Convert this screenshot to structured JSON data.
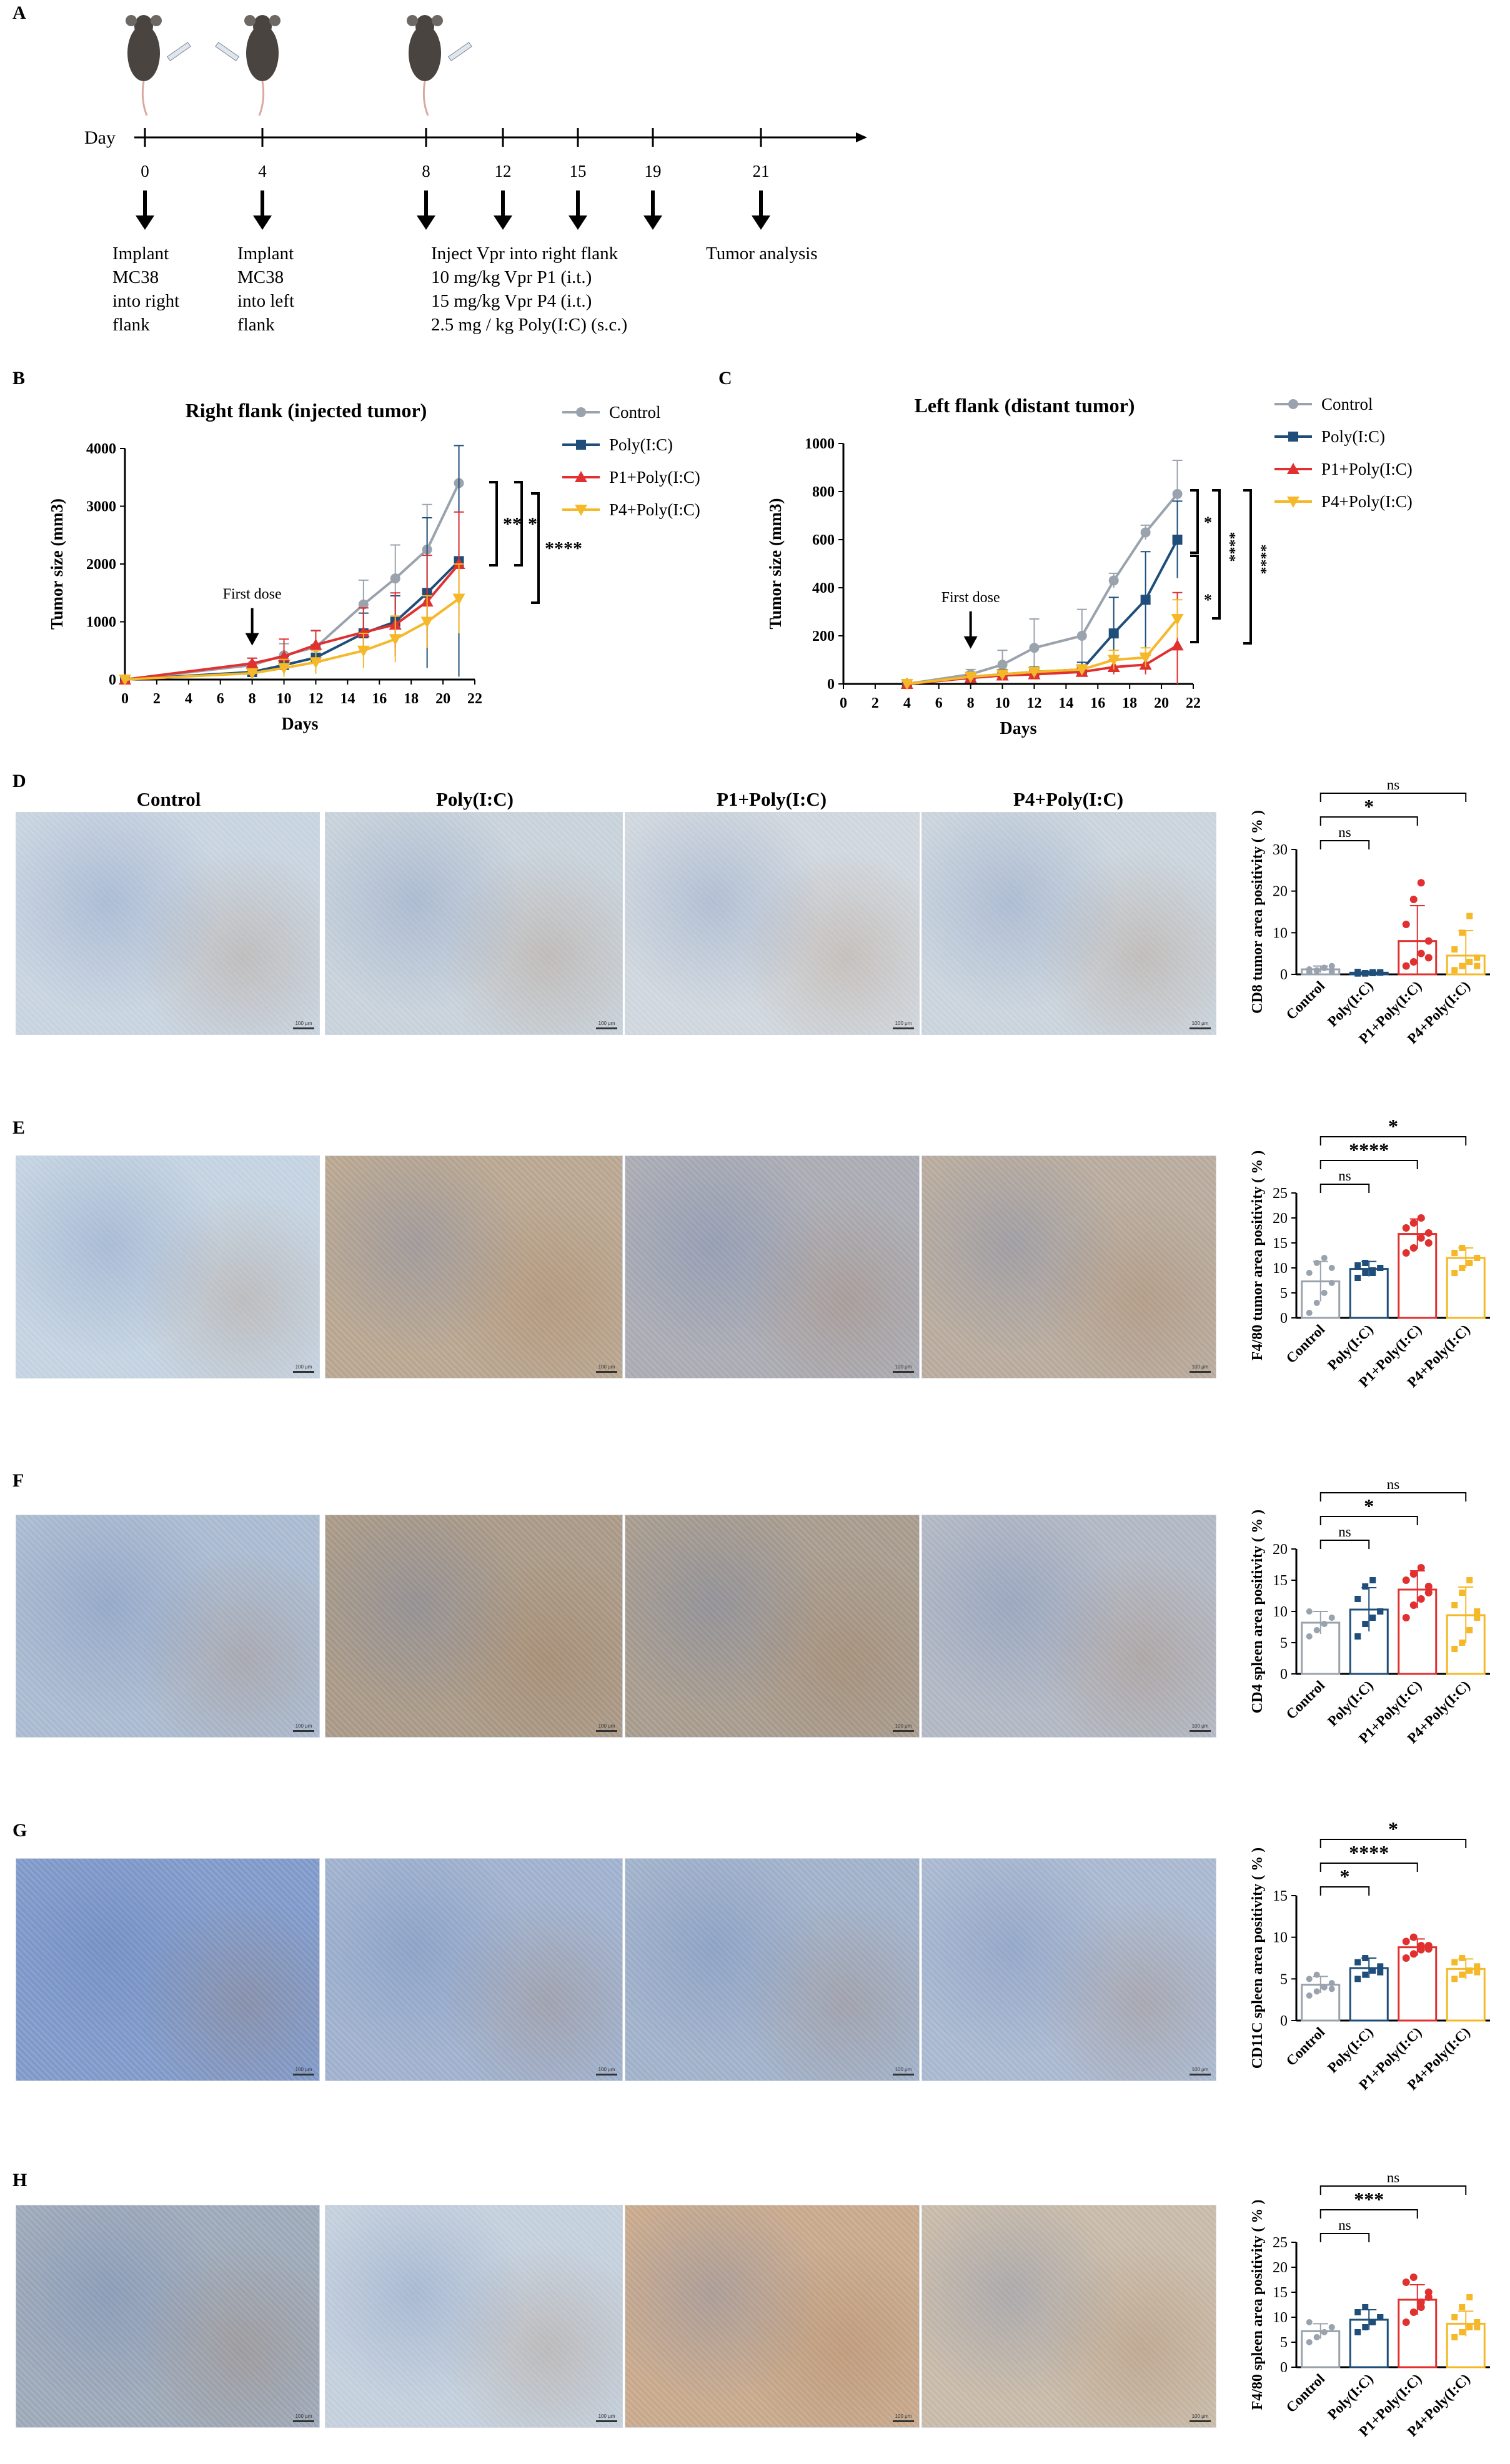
{
  "panel_labels": {
    "A": "A",
    "B": "B",
    "C": "C",
    "D": "D",
    "E": "E",
    "F": "F",
    "G": "G",
    "H": "H"
  },
  "timeline": {
    "day_label": "Day",
    "days": [
      "0",
      "4",
      "8",
      "12",
      "15",
      "19",
      "21"
    ],
    "notes": [
      [
        "Implant",
        "MC38",
        "into right",
        "flank"
      ],
      [
        "Implant",
        "MC38",
        "into left",
        "flank"
      ],
      [
        "Inject Vpr into right flank",
        "10 mg/kg Vpr P1 (i.t.)",
        "15 mg/kg Vpr P4 (i.t.)",
        "2.5 mg / kg Poly(I:C) (s.c.)"
      ],
      [
        "Tumor analysis"
      ]
    ]
  },
  "legend": [
    "Control",
    "Poly(I:C)",
    "P1+Poly(I:C)",
    "P4+Poly(I:C)"
  ],
  "colors": {
    "control": "#9aa3ad",
    "poly": "#1f4e7a",
    "p1": "#e03030",
    "p4": "#f5b829",
    "annot": "#000000"
  },
  "first_dose_label": "First dose",
  "micro_columns": [
    "Control",
    "Poly(I:C)",
    "P1+Poly(I:C)",
    "P4+Poly(I:C)"
  ],
  "micro_tints": [
    [
      "#c7d3df",
      "#c7d1da",
      "#cfd6dd",
      "#c9d3dc"
    ],
    [
      "#c3d2e0",
      "#b8a58f",
      "#a9aab2",
      "#b7aa9c"
    ],
    [
      "#a9b9cf",
      "#a89885",
      "#a69a8c",
      "#b0b6c2"
    ],
    [
      "#7e99c9",
      "#9eb0cd",
      "#9fb0c9",
      "#a8b7cf"
    ],
    [
      "#9ca8b8",
      "#c3cfdc",
      "#c7a88b",
      "#c7b9a7"
    ]
  ],
  "scale_bar": "100 μm",
  "chart_data": [
    {
      "type": "line",
      "title": "Right flank (injected tumor)",
      "xlabel": "Days",
      "ylabel": "Tumor size (mm3)",
      "xlim": [
        0,
        22
      ],
      "ylim": [
        0,
        4000
      ],
      "xticks": [
        "0",
        "2",
        "4",
        "6",
        "8",
        "10",
        "12",
        "14",
        "16",
        "18",
        "20",
        "22"
      ],
      "yticks": [
        "0",
        "1000",
        "2000",
        "3000",
        "4000"
      ],
      "x": [
        0,
        8,
        10,
        12,
        15,
        17,
        19,
        21
      ],
      "series": [
        {
          "name": "Control",
          "values": [
            0,
            250,
            420,
            560,
            1300,
            1750,
            2250,
            3400
          ],
          "errors": [
            0,
            120,
            200,
            280,
            420,
            580,
            780,
            650
          ]
        },
        {
          "name": "Poly(I:C)",
          "values": [
            0,
            130,
            250,
            380,
            800,
            1000,
            1500,
            2050
          ],
          "errors": [
            0,
            80,
            150,
            220,
            350,
            450,
            1300,
            2000
          ]
        },
        {
          "name": "P1+Poly(I:C)",
          "values": [
            0,
            280,
            400,
            600,
            820,
            950,
            1350,
            2000
          ],
          "errors": [
            0,
            90,
            300,
            250,
            420,
            550,
            800,
            900
          ]
        },
        {
          "name": "P4+Poly(I:C)",
          "values": [
            0,
            110,
            200,
            300,
            500,
            700,
            1000,
            1400
          ],
          "errors": [
            0,
            70,
            150,
            200,
            300,
            400,
            450,
            600
          ]
        }
      ],
      "annotations": [
        "**",
        "*",
        "****"
      ]
    },
    {
      "type": "line",
      "title": "Left flank (distant tumor)",
      "xlabel": "Days",
      "ylabel": "Tumor size (mm3)",
      "xlim": [
        0,
        22
      ],
      "ylim": [
        0,
        1000
      ],
      "xticks": [
        "0",
        "2",
        "4",
        "6",
        "8",
        "10",
        "12",
        "14",
        "16",
        "18",
        "20",
        "22"
      ],
      "yticks": [
        "0",
        "200",
        "400",
        "600",
        "800",
        "1000"
      ],
      "x": [
        4,
        8,
        10,
        12,
        15,
        17,
        19,
        21
      ],
      "series": [
        {
          "name": "Control",
          "values": [
            0,
            40,
            80,
            150,
            200,
            430,
            630,
            790
          ],
          "errors": [
            10,
            20,
            60,
            120,
            110,
            30,
            30,
            140
          ]
        },
        {
          "name": "Poly(I:C)",
          "values": [
            0,
            30,
            40,
            50,
            60,
            210,
            350,
            600
          ],
          "errors": [
            10,
            15,
            20,
            20,
            30,
            150,
            200,
            160
          ]
        },
        {
          "name": "P1+Poly(I:C)",
          "values": [
            0,
            25,
            35,
            40,
            50,
            70,
            80,
            160
          ],
          "errors": [
            10,
            10,
            15,
            15,
            20,
            30,
            40,
            220
          ]
        },
        {
          "name": "P4+Poly(I:C)",
          "values": [
            0,
            30,
            40,
            50,
            60,
            100,
            110,
            270
          ],
          "errors": [
            10,
            10,
            15,
            15,
            20,
            40,
            40,
            80
          ]
        }
      ],
      "annotations": [
        "*",
        "*",
        "****",
        "****"
      ]
    },
    {
      "type": "bar",
      "ylabel": "CD8 tumor area positivity ( % )",
      "categories": [
        "Control",
        "Poly(I:C)",
        "P1+Poly(I:C)",
        "P4+Poly(I:C)"
      ],
      "values": [
        1.2,
        0.4,
        8.0,
        4.5
      ],
      "errors": [
        0.8,
        0.3,
        8.5,
        6.0
      ],
      "points": [
        [
          0.5,
          1.0,
          1.5,
          2.0,
          1.2,
          0.8,
          1.6,
          0.6
        ],
        [
          0.2,
          0.3,
          0.5,
          0.4,
          0.6,
          0.2,
          0.3,
          0.5
        ],
        [
          2,
          3,
          5,
          8,
          12,
          18,
          22,
          4
        ],
        [
          1,
          2,
          3,
          4,
          6,
          10,
          14,
          2
        ]
      ],
      "ylim": [
        0,
        30
      ],
      "yticks": [
        "0",
        "10",
        "20",
        "30"
      ],
      "annotations": [
        {
          "pair": [
            0,
            3
          ],
          "text": "ns"
        },
        {
          "pair": [
            0,
            2
          ],
          "text": "*"
        },
        {
          "pair": [
            0,
            1
          ],
          "text": "ns"
        }
      ]
    },
    {
      "type": "bar",
      "ylabel": "F4/80 tumor area positivity ( % )",
      "categories": [
        "Control",
        "Poly(I:C)",
        "P1+Poly(I:C)",
        "P4+Poly(I:C)"
      ],
      "values": [
        7.3,
        9.8,
        16.8,
        12.0
      ],
      "errors": [
        4.0,
        1.5,
        3.0,
        2.0
      ],
      "points": [
        [
          1,
          3,
          5,
          7,
          9,
          11,
          12,
          10
        ],
        [
          8,
          9,
          9.5,
          10,
          10.5,
          11,
          9,
          10
        ],
        [
          13,
          14,
          16,
          17,
          18,
          19,
          20,
          15
        ],
        [
          9,
          10,
          11,
          12,
          13,
          14,
          11,
          12
        ]
      ],
      "ylim": [
        0,
        25
      ],
      "yticks": [
        "0",
        "5",
        "10",
        "15",
        "20",
        "25"
      ],
      "annotations": [
        {
          "pair": [
            0,
            3
          ],
          "text": "*"
        },
        {
          "pair": [
            0,
            2
          ],
          "text": "****"
        },
        {
          "pair": [
            0,
            1
          ],
          "text": "ns"
        }
      ]
    },
    {
      "type": "bar",
      "ylabel": "CD4 spleen area positivity ( % )",
      "categories": [
        "Control",
        "Poly(I:C)",
        "P1+Poly(I:C)",
        "P4+Poly(I:C)"
      ],
      "values": [
        8.2,
        10.3,
        13.5,
        9.4
      ],
      "errors": [
        1.8,
        3.5,
        3.0,
        4.5
      ],
      "points": [
        [
          6,
          7,
          8,
          9,
          10,
          7,
          8,
          9
        ],
        [
          6,
          8,
          9,
          10,
          12,
          14,
          15,
          10
        ],
        [
          9,
          11,
          12,
          14,
          15,
          16,
          17,
          13
        ],
        [
          4,
          5,
          7,
          9,
          11,
          13,
          15,
          10
        ]
      ],
      "ylim": [
        0,
        20
      ],
      "yticks": [
        "0",
        "5",
        "10",
        "15",
        "20"
      ],
      "annotations": [
        {
          "pair": [
            0,
            3
          ],
          "text": "ns"
        },
        {
          "pair": [
            0,
            2
          ],
          "text": "*"
        },
        {
          "pair": [
            0,
            1
          ],
          "text": "ns"
        }
      ]
    },
    {
      "type": "bar",
      "ylabel": "CD11C spleen area positivity ( % )",
      "categories": [
        "Control",
        "Poly(I:C)",
        "P1+Poly(I:C)",
        "P4+Poly(I:C)"
      ],
      "values": [
        4.3,
        6.3,
        8.8,
        6.2
      ],
      "errors": [
        1.0,
        1.2,
        1.0,
        1.2
      ],
      "points": [
        [
          3,
          3.5,
          4,
          4.5,
          5,
          5.5,
          4,
          3.8
        ],
        [
          5,
          5.5,
          6,
          6.5,
          7,
          7.5,
          6,
          5.8
        ],
        [
          7.5,
          8,
          8.5,
          9,
          9.5,
          10,
          9,
          8.6
        ],
        [
          5,
          5.5,
          6,
          6.5,
          7,
          7.5,
          6,
          5.8
        ]
      ],
      "ylim": [
        0,
        15
      ],
      "yticks": [
        "0",
        "5",
        "10",
        "15"
      ],
      "annotations": [
        {
          "pair": [
            0,
            3
          ],
          "text": "*"
        },
        {
          "pair": [
            0,
            2
          ],
          "text": "****"
        },
        {
          "pair": [
            0,
            1
          ],
          "text": "*"
        }
      ]
    },
    {
      "type": "bar",
      "ylabel": "F4/80 spleen area positivity ( % )",
      "categories": [
        "Control",
        "Poly(I:C)",
        "P1+Poly(I:C)",
        "P4+Poly(I:C)"
      ],
      "values": [
        7.2,
        9.5,
        13.5,
        8.7
      ],
      "errors": [
        1.5,
        2.0,
        3.0,
        2.5
      ],
      "points": [
        [
          5,
          6,
          7,
          8,
          9,
          6,
          7,
          8
        ],
        [
          7,
          8,
          9,
          10,
          11,
          12,
          9,
          10
        ],
        [
          9,
          11,
          13,
          15,
          17,
          18,
          12,
          14
        ],
        [
          6,
          7,
          8,
          9,
          10,
          12,
          14,
          8
        ]
      ],
      "ylim": [
        0,
        25
      ],
      "yticks": [
        "0",
        "5",
        "10",
        "15",
        "20",
        "25"
      ],
      "annotations": [
        {
          "pair": [
            0,
            3
          ],
          "text": "ns"
        },
        {
          "pair": [
            0,
            2
          ],
          "text": "***"
        },
        {
          "pair": [
            0,
            1
          ],
          "text": "ns"
        }
      ]
    }
  ]
}
